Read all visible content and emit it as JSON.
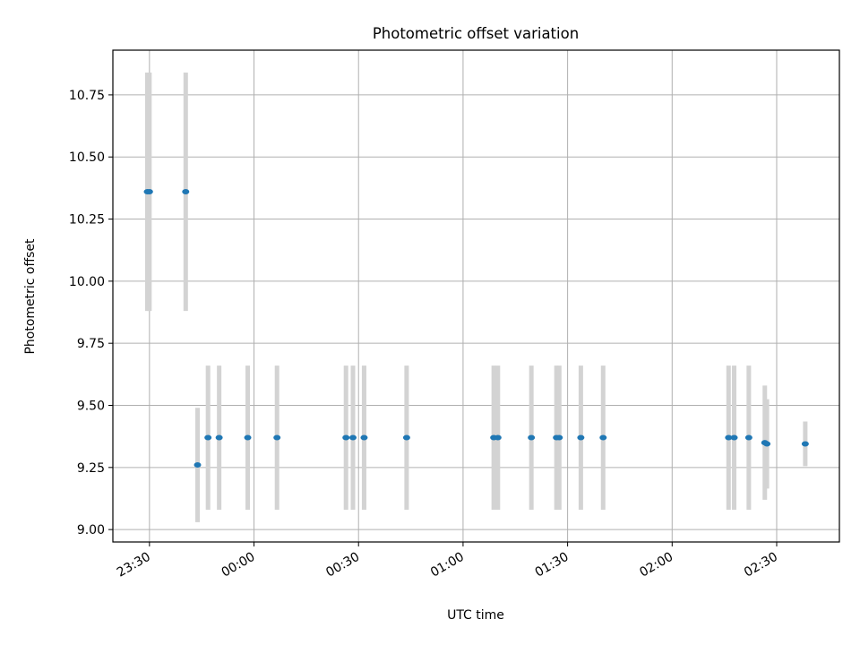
{
  "chart_data": {
    "type": "scatter",
    "title": "Photometric offset variation",
    "xlabel": "UTC time",
    "ylabel": "Photometric offset",
    "xlim_minutes_from_2330": [
      -10.5,
      198
    ],
    "ylim": [
      8.95,
      10.93
    ],
    "grid": true,
    "legend": "none",
    "colors": {
      "point": "#1f77b4",
      "errorbar": "#d3d3d3",
      "grid": "#b0b0b0"
    },
    "x_ticks": [
      "23:30",
      "00:00",
      "00:30",
      "01:00",
      "01:30",
      "02:00",
      "02:30"
    ],
    "y_ticks": [
      "9.00",
      "9.25",
      "9.50",
      "9.75",
      "10.00",
      "10.25",
      "10.50",
      "10.75"
    ],
    "points": [
      {
        "t": "23:29:24",
        "y": 10.36,
        "err": 0.48
      },
      {
        "t": "23:30:00",
        "y": 10.36,
        "err": 0.48
      },
      {
        "t": "23:40:24",
        "y": 10.36,
        "err": 0.48
      },
      {
        "t": "23:43:48",
        "y": 9.26,
        "err": 0.23
      },
      {
        "t": "23:46:48",
        "y": 9.37,
        "err": 0.29
      },
      {
        "t": "23:50:00",
        "y": 9.37,
        "err": 0.29
      },
      {
        "t": "23:58:12",
        "y": 9.37,
        "err": 0.29
      },
      {
        "t": "00:06:36",
        "y": 9.37,
        "err": 0.29
      },
      {
        "t": "00:26:24",
        "y": 9.37,
        "err": 0.29
      },
      {
        "t": "00:28:24",
        "y": 9.37,
        "err": 0.29
      },
      {
        "t": "00:31:36",
        "y": 9.37,
        "err": 0.29
      },
      {
        "t": "00:43:48",
        "y": 9.37,
        "err": 0.29
      },
      {
        "t": "01:08:48",
        "y": 9.37,
        "err": 0.29
      },
      {
        "t": "01:10:00",
        "y": 9.37,
        "err": 0.29
      },
      {
        "t": "01:19:36",
        "y": 9.37,
        "err": 0.29
      },
      {
        "t": "01:26:48",
        "y": 9.37,
        "err": 0.29
      },
      {
        "t": "01:27:36",
        "y": 9.37,
        "err": 0.29
      },
      {
        "t": "01:33:48",
        "y": 9.37,
        "err": 0.29
      },
      {
        "t": "01:40:12",
        "y": 9.37,
        "err": 0.29
      },
      {
        "t": "02:16:12",
        "y": 9.37,
        "err": 0.29
      },
      {
        "t": "02:17:48",
        "y": 9.37,
        "err": 0.29
      },
      {
        "t": "02:22:00",
        "y": 9.37,
        "err": 0.29
      },
      {
        "t": "02:26:36",
        "y": 9.35,
        "err": 0.23
      },
      {
        "t": "02:27:12",
        "y": 9.345,
        "err": 0.18
      },
      {
        "t": "02:38:12",
        "y": 9.345,
        "err": 0.09
      }
    ]
  }
}
